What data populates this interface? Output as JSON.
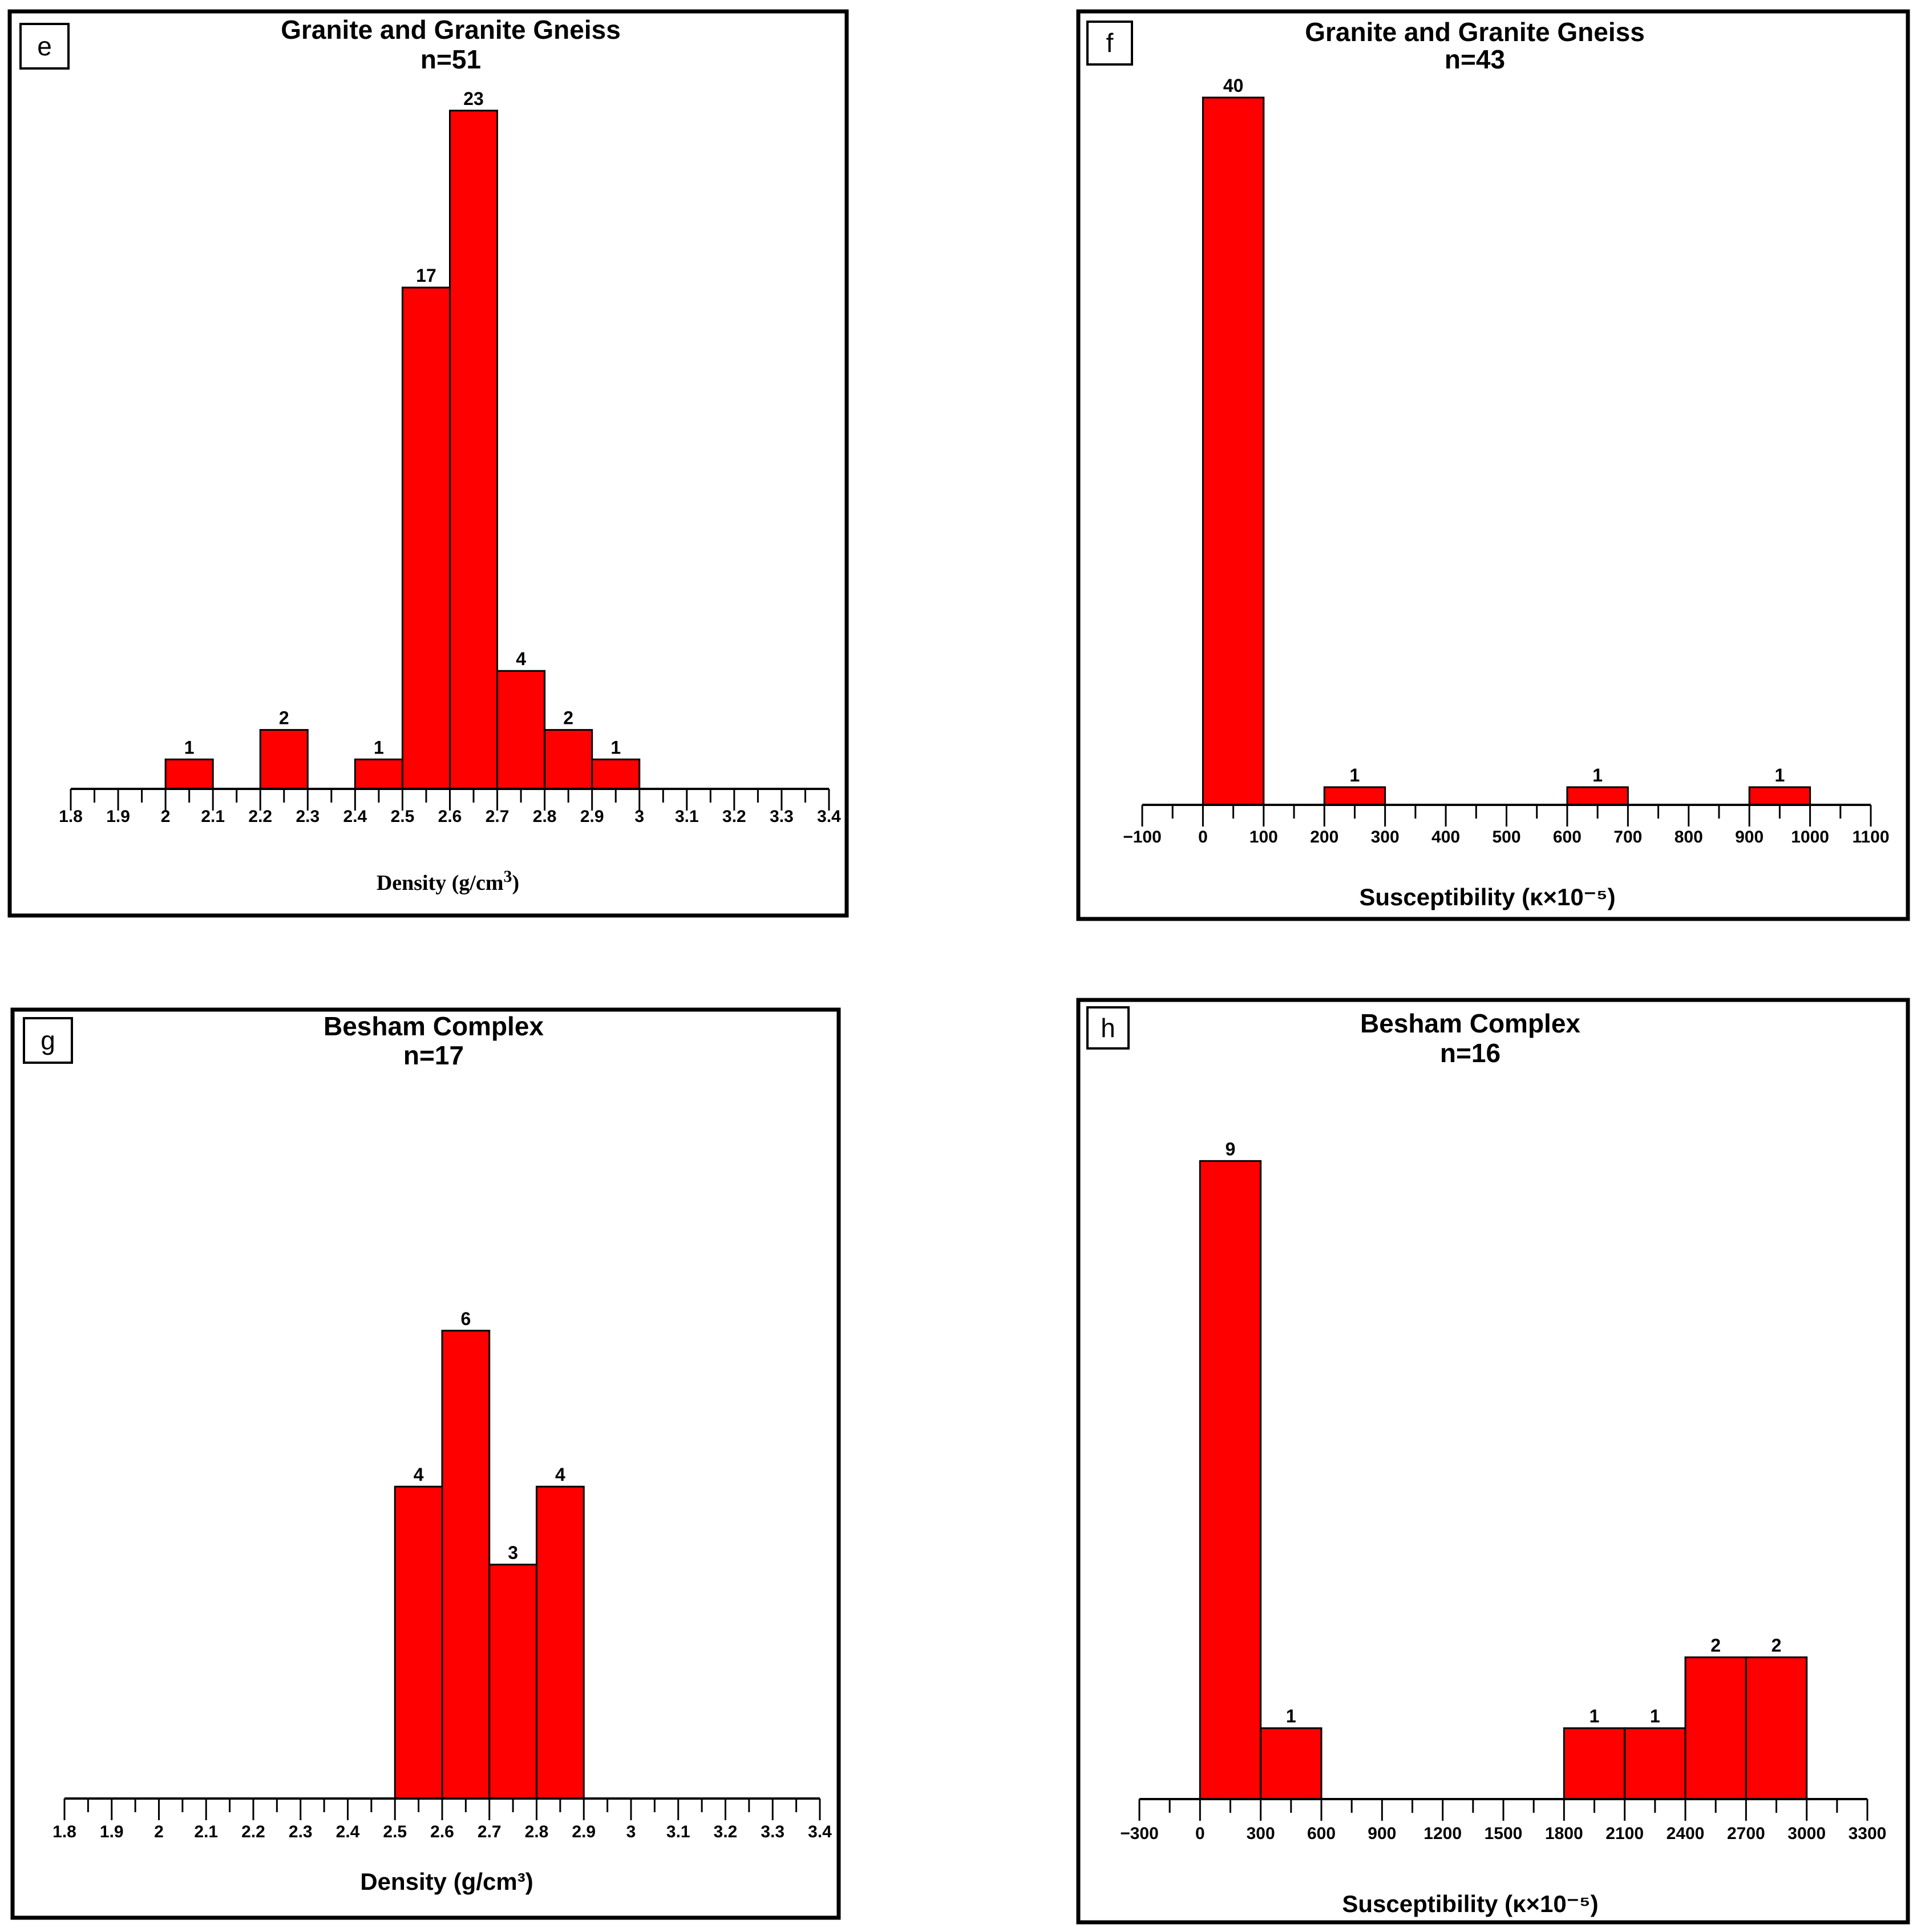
{
  "chart_data": [
    {
      "id": "e",
      "type": "bar",
      "panel_letter": "e",
      "title": "Granite and Granite Gneiss",
      "subtitle": "n=51",
      "xlabel": "Density (g/cm3)",
      "xlabel_main": "Density (g/cm",
      "xlabel_sup": "3",
      "xlabel_close": ")",
      "xlim": [
        1.8,
        3.4
      ],
      "xticks": [
        1.8,
        1.9,
        2.0,
        2.1,
        2.2,
        2.3,
        2.4,
        2.5,
        2.6,
        2.7,
        2.8,
        2.9,
        3.0,
        3.1,
        3.2,
        3.3,
        3.4
      ],
      "xtick_labels": [
        "1.8",
        "1.9",
        "2",
        "2.1",
        "2.2",
        "2.3",
        "2.4",
        "2.5",
        "2.6",
        "2.7",
        "2.8",
        "2.9",
        "3",
        "3.1",
        "3.2",
        "3.3",
        "3.4"
      ],
      "bins": [
        {
          "x0": 2.0,
          "x1": 2.1,
          "count": 1,
          "label": "1"
        },
        {
          "x0": 2.2,
          "x1": 2.3,
          "count": 2,
          "label": "2"
        },
        {
          "x0": 2.4,
          "x1": 2.5,
          "count": 1,
          "label": "1"
        },
        {
          "x0": 2.5,
          "x1": 2.6,
          "count": 17,
          "label": "17"
        },
        {
          "x0": 2.6,
          "x1": 2.7,
          "count": 23,
          "label": "23"
        },
        {
          "x0": 2.7,
          "x1": 2.8,
          "count": 4,
          "label": "4"
        },
        {
          "x0": 2.8,
          "x1": 2.9,
          "count": 2,
          "label": "2"
        },
        {
          "x0": 2.9,
          "x1": 3.0,
          "count": 1,
          "label": "1"
        }
      ],
      "color": "#ff0000"
    },
    {
      "id": "f",
      "type": "bar",
      "panel_letter": "f",
      "title": "Granite and Granite Gneiss",
      "subtitle": "n=43",
      "xlabel": "Susceptibility (κ×10⁻⁵)",
      "xlim": [
        -100,
        1100
      ],
      "xticks": [
        -100,
        0,
        100,
        200,
        300,
        400,
        500,
        600,
        700,
        800,
        900,
        1000,
        1100
      ],
      "xtick_labels": [
        "−100",
        "0",
        "100",
        "200",
        "300",
        "400",
        "500",
        "600",
        "700",
        "800",
        "900",
        "1000",
        "1100"
      ],
      "bins": [
        {
          "x0": 0,
          "x1": 100,
          "count": 40,
          "label": "40"
        },
        {
          "x0": 200,
          "x1": 300,
          "count": 1,
          "label": "1"
        },
        {
          "x0": 600,
          "x1": 700,
          "count": 1,
          "label": "1"
        },
        {
          "x0": 900,
          "x1": 1000,
          "count": 1,
          "label": "1"
        }
      ],
      "color": "#ff0000"
    },
    {
      "id": "g",
      "type": "bar",
      "panel_letter": "g",
      "title": "Besham Complex",
      "subtitle": "n=17",
      "xlabel": "Density (g/cm³)",
      "xlim": [
        1.8,
        3.4
      ],
      "xticks": [
        1.8,
        1.9,
        2.0,
        2.1,
        2.2,
        2.3,
        2.4,
        2.5,
        2.6,
        2.7,
        2.8,
        2.9,
        3.0,
        3.1,
        3.2,
        3.3,
        3.4
      ],
      "xtick_labels": [
        "1.8",
        "1.9",
        "2",
        "2.1",
        "2.2",
        "2.3",
        "2.4",
        "2.5",
        "2.6",
        "2.7",
        "2.8",
        "2.9",
        "3",
        "3.1",
        "3.2",
        "3.3",
        "3.4"
      ],
      "bins": [
        {
          "x0": 2.5,
          "x1": 2.6,
          "count": 4,
          "label": "4"
        },
        {
          "x0": 2.6,
          "x1": 2.7,
          "count": 6,
          "label": "6"
        },
        {
          "x0": 2.7,
          "x1": 2.8,
          "count": 3,
          "label": "3"
        },
        {
          "x0": 2.8,
          "x1": 2.9,
          "count": 4,
          "label": "4"
        }
      ],
      "color": "#ff0000"
    },
    {
      "id": "h",
      "type": "bar",
      "panel_letter": "h",
      "title": "Besham Complex",
      "subtitle": "n=16",
      "xlabel": "Susceptibility (κ×10⁻⁵)",
      "xlim": [
        -300,
        3300
      ],
      "xticks": [
        -300,
        0,
        300,
        600,
        900,
        1200,
        1500,
        1800,
        2100,
        2400,
        2700,
        3000,
        3300
      ],
      "xtick_labels": [
        "−300",
        "0",
        "300",
        "600",
        "900",
        "1200",
        "1500",
        "1800",
        "2100",
        "2400",
        "2700",
        "3000",
        "3300"
      ],
      "bins": [
        {
          "x0": 0,
          "x1": 300,
          "count": 9,
          "label": "9"
        },
        {
          "x0": 300,
          "x1": 600,
          "count": 1,
          "label": "1"
        },
        {
          "x0": 1800,
          "x1": 2100,
          "count": 1,
          "label": "1"
        },
        {
          "x0": 2100,
          "x1": 2400,
          "count": 1,
          "label": "1"
        },
        {
          "x0": 2400,
          "x1": 2700,
          "count": 2,
          "label": "2"
        },
        {
          "x0": 2700,
          "x1": 3000,
          "count": 2,
          "label": "2"
        }
      ],
      "color": "#ff0000"
    }
  ]
}
